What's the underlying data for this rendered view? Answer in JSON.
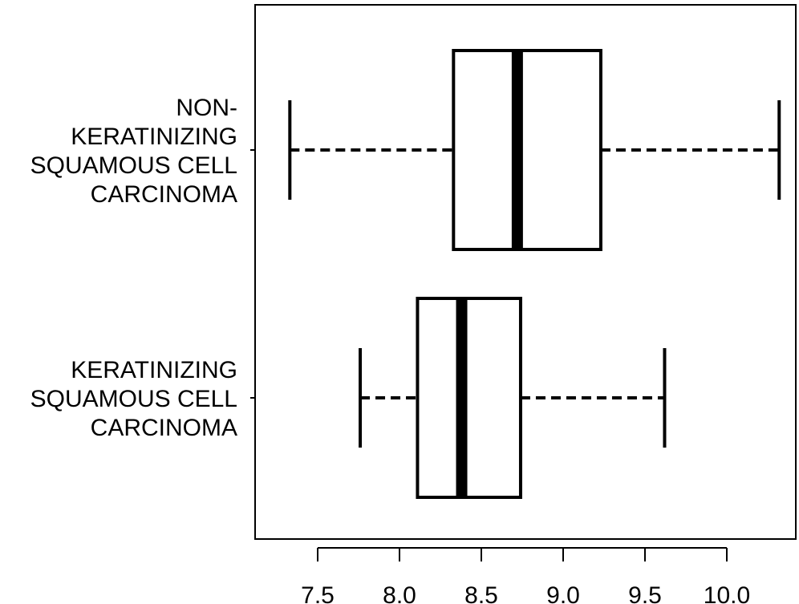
{
  "chart_data": {
    "type": "boxplot",
    "orientation": "horizontal",
    "title": "",
    "xlabel": "",
    "ylabel": "",
    "xlim": [
      7.2,
      10.45
    ],
    "x_ticks": [
      7.5,
      8.0,
      8.5,
      9.0,
      9.5,
      10.0
    ],
    "x_tick_labels": [
      "7.5",
      "8.0",
      "8.5",
      "9.0",
      "9.5",
      "10.0"
    ],
    "categories": [
      {
        "lines": [
          "NON-",
          "KERATINIZING",
          "SQUAMOUS CELL",
          "CARCINOMA"
        ],
        "whisker_low": 7.33,
        "q1": 8.33,
        "median": 8.72,
        "q3": 9.23,
        "whisker_high": 10.32
      },
      {
        "lines": [
          "KERATINIZING",
          "SQUAMOUS CELL",
          "CARCINOMA"
        ],
        "whisker_low": 7.76,
        "q1": 8.11,
        "median": 8.38,
        "q3": 8.74,
        "whisker_high": 9.62
      }
    ],
    "colors": {
      "stroke": "#000000",
      "box_fill": "#ffffff"
    },
    "grid": false,
    "legend": "none"
  }
}
